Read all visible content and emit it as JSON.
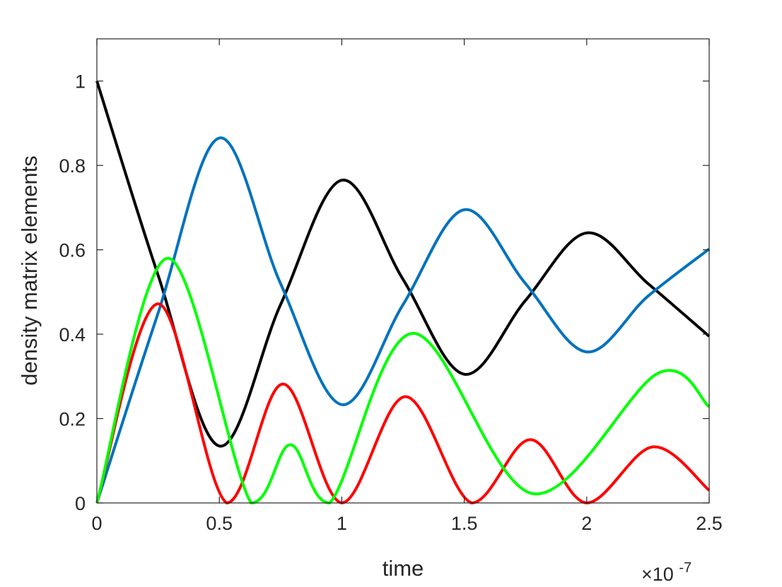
{
  "chart_data": {
    "type": "line",
    "title": "",
    "xlabel": "time",
    "ylabel": "density matrix elements",
    "x_exponent_label": {
      "base": "×10",
      "exponent": "-7"
    },
    "xlim": [
      0,
      2.5
    ],
    "ylim": [
      0,
      1.1
    ],
    "x_ticks": [
      "0",
      "0.5",
      "1",
      "1.5",
      "2",
      "2.5"
    ],
    "y_ticks": [
      "0",
      "0.2",
      "0.4",
      "0.6",
      "0.8",
      "1"
    ],
    "grid": false,
    "legend": "none",
    "series": [
      {
        "color": "#000000",
        "x": [
          0,
          0.25,
          0.5,
          0.75,
          1.0,
          1.25,
          1.5,
          1.75,
          2.0,
          2.25,
          2.5
        ],
        "y": [
          1.0,
          0.54,
          0.135,
          0.47,
          0.765,
          0.53,
          0.305,
          0.48,
          0.64,
          0.52,
          0.395
        ]
      },
      {
        "color": "#0072BD",
        "x": [
          0,
          0.25,
          0.5,
          0.75,
          1.0,
          1.25,
          1.5,
          1.75,
          2.0,
          2.25,
          2.5
        ],
        "y": [
          0.0,
          0.45,
          0.865,
          0.52,
          0.233,
          0.47,
          0.695,
          0.52,
          0.358,
          0.49,
          0.602
        ]
      },
      {
        "color": "#FF0000",
        "x": [
          0,
          0.25,
          0.53,
          0.76,
          1.0,
          1.26,
          1.53,
          1.77,
          2.0,
          2.27,
          2.5
        ],
        "y": [
          0.0,
          0.472,
          0.0,
          0.282,
          0.0,
          0.252,
          0.0,
          0.15,
          0.0,
          0.133,
          0.03
        ]
      },
      {
        "color": "#00FF00",
        "x": [
          0,
          0.29,
          0.63,
          0.79,
          0.95,
          1.29,
          1.78,
          2.29,
          2.5
        ],
        "y": [
          0.0,
          0.58,
          0.0,
          0.138,
          0.0,
          0.402,
          0.022,
          0.307,
          0.228
        ]
      }
    ]
  }
}
